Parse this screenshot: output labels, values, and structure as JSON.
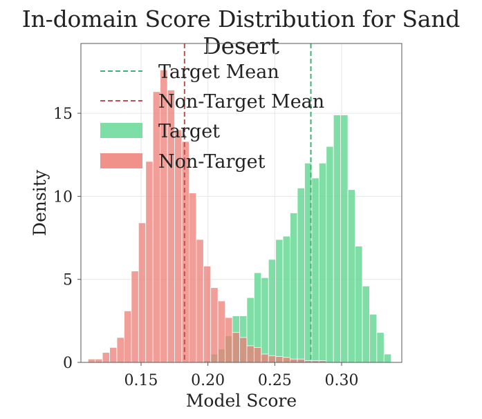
{
  "chart_data": {
    "type": "histogram",
    "title": "In-domain Score Distribution for Sand Desert",
    "xlabel": "Model Score",
    "ylabel": "Density",
    "xlim": [
      0.105,
      0.345
    ],
    "ylim": [
      0,
      19.2
    ],
    "xticks": [
      0.15,
      0.2,
      0.25,
      0.3
    ],
    "xtick_labels": [
      "0.15",
      "0.20",
      "0.25",
      "0.30"
    ],
    "yticks": [
      0,
      5,
      10,
      15
    ],
    "ytick_labels": [
      "0",
      "5",
      "10",
      "15"
    ],
    "grid": true,
    "legend_position": "top-left",
    "bin_width": 0.0054,
    "legend": [
      {
        "label": "Target Mean",
        "kind": "dashed-line",
        "color": "#3cb371"
      },
      {
        "label": "Non-Target Mean",
        "kind": "dashed-line",
        "color": "#c0504d"
      },
      {
        "label": "Target",
        "kind": "patch",
        "color": "#7ddfa6"
      },
      {
        "label": "Non-Target",
        "kind": "patch",
        "color": "#f0918a"
      }
    ],
    "series": [
      {
        "name": "Target",
        "color": "#5fd68f",
        "bins": [
          {
            "x": 0.1994,
            "y": 0.1
          },
          {
            "x": 0.2048,
            "y": 0.5
          },
          {
            "x": 0.2102,
            "y": 0.8
          },
          {
            "x": 0.2156,
            "y": 1.6
          },
          {
            "x": 0.221,
            "y": 2.8
          },
          {
            "x": 0.2264,
            "y": 2.8
          },
          {
            "x": 0.2318,
            "y": 3.9
          },
          {
            "x": 0.2372,
            "y": 5.4
          },
          {
            "x": 0.2426,
            "y": 5.1
          },
          {
            "x": 0.248,
            "y": 6.2
          },
          {
            "x": 0.2534,
            "y": 7.4
          },
          {
            "x": 0.2588,
            "y": 7.6
          },
          {
            "x": 0.2642,
            "y": 9.0
          },
          {
            "x": 0.2696,
            "y": 10.5
          },
          {
            "x": 0.275,
            "y": 12.0
          },
          {
            "x": 0.2804,
            "y": 11.1
          },
          {
            "x": 0.2858,
            "y": 12.0
          },
          {
            "x": 0.2912,
            "y": 13.0
          },
          {
            "x": 0.2966,
            "y": 14.9
          },
          {
            "x": 0.302,
            "y": 14.9
          },
          {
            "x": 0.3074,
            "y": 10.4
          },
          {
            "x": 0.3128,
            "y": 7.0
          },
          {
            "x": 0.3182,
            "y": 4.6
          },
          {
            "x": 0.3236,
            "y": 2.9
          },
          {
            "x": 0.329,
            "y": 1.8
          },
          {
            "x": 0.3344,
            "y": 0.5
          }
        ]
      },
      {
        "name": "Non-Target",
        "color": "#ec7d75",
        "bins": [
          {
            "x": 0.113,
            "y": 0.2
          },
          {
            "x": 0.1184,
            "y": 0.2
          },
          {
            "x": 0.1238,
            "y": 0.6
          },
          {
            "x": 0.1292,
            "y": 0.9
          },
          {
            "x": 0.1346,
            "y": 1.5
          },
          {
            "x": 0.14,
            "y": 3.1
          },
          {
            "x": 0.1454,
            "y": 5.5
          },
          {
            "x": 0.1508,
            "y": 8.4
          },
          {
            "x": 0.1562,
            "y": 12.1
          },
          {
            "x": 0.1616,
            "y": 16.3
          },
          {
            "x": 0.167,
            "y": 17.6
          },
          {
            "x": 0.1724,
            "y": 16.4
          },
          {
            "x": 0.1778,
            "y": 14.0
          },
          {
            "x": 0.1832,
            "y": 13.3
          },
          {
            "x": 0.1886,
            "y": 10.2
          },
          {
            "x": 0.194,
            "y": 7.4
          },
          {
            "x": 0.1994,
            "y": 5.8
          },
          {
            "x": 0.2048,
            "y": 4.5
          },
          {
            "x": 0.2102,
            "y": 3.7
          },
          {
            "x": 0.2156,
            "y": 2.7
          },
          {
            "x": 0.221,
            "y": 1.8
          },
          {
            "x": 0.2264,
            "y": 1.5
          },
          {
            "x": 0.2318,
            "y": 1.0
          },
          {
            "x": 0.2372,
            "y": 0.9
          },
          {
            "x": 0.2426,
            "y": 0.5
          },
          {
            "x": 0.248,
            "y": 0.4
          },
          {
            "x": 0.2534,
            "y": 0.35
          },
          {
            "x": 0.2588,
            "y": 0.3
          },
          {
            "x": 0.2642,
            "y": 0.2
          },
          {
            "x": 0.2696,
            "y": 0.2
          },
          {
            "x": 0.275,
            "y": 0.1
          },
          {
            "x": 0.2804,
            "y": 0.1
          },
          {
            "x": 0.2858,
            "y": 0.1
          }
        ]
      }
    ],
    "mean_lines": [
      {
        "name": "Target Mean",
        "x": 0.277,
        "color": "#3cb371"
      },
      {
        "name": "Non-Target Mean",
        "x": 0.1825,
        "color": "#c0504d"
      }
    ]
  }
}
